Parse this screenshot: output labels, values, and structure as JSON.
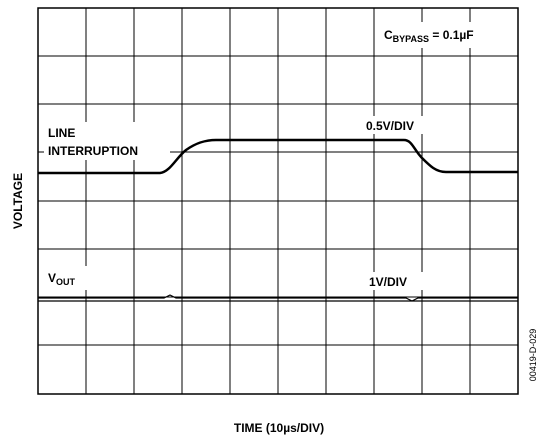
{
  "annotations": {
    "bypass": {
      "main": "C",
      "sub": "BYPASS",
      "rest": " = 0.1µF"
    },
    "line_interruption": [
      "LINE",
      "INTERRUPTION"
    ],
    "upper_scale": "0.5V/DIV",
    "vout": {
      "main": "V",
      "sub": "OUT"
    },
    "lower_scale": "1V/DIV"
  },
  "y_axis_label": "VOLTAGE",
  "x_axis_label": "TIME (10µs/DIV)",
  "figure_id": "00419-D-029"
}
